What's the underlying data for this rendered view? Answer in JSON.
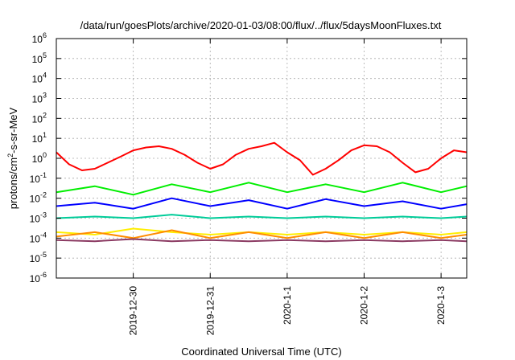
{
  "chart_data": {
    "type": "line",
    "title": "/data/run/goesPlots/archive/2020-01-03/08:00/flux/../flux/5daysMoonFluxes.txt",
    "xlabel": "Coordinated Universal Time (UTC)",
    "ylabel": {
      "part1": "protons/cm",
      "sup": "2",
      "part2": "-s-sr-MeV"
    },
    "xlim": [
      "2019-12-29T00:00",
      "2020-01-03T08:00"
    ],
    "ylim": [
      1e-06,
      1000000.0
    ],
    "yscale": "log",
    "grid": true,
    "x_ticks": [
      {
        "date": "2019-12-30",
        "label": "2019-12-30"
      },
      {
        "date": "2019-12-31",
        "label": "2019-12-31"
      },
      {
        "date": "2020-01-01",
        "label": "2020-1-1"
      },
      {
        "date": "2020-01-02",
        "label": "2020-1-2"
      },
      {
        "date": "2020-01-03",
        "label": "2020-1-3"
      }
    ],
    "y_ticks": [
      {
        "value": 1e-06,
        "base": "10",
        "exp": "-6"
      },
      {
        "value": 1e-05,
        "base": "10",
        "exp": "-5"
      },
      {
        "value": 0.0001,
        "base": "10",
        "exp": "-4"
      },
      {
        "value": 0.001,
        "base": "10",
        "exp": "-3"
      },
      {
        "value": 0.01,
        "base": "10",
        "exp": "-2"
      },
      {
        "value": 0.1,
        "base": "10",
        "exp": "-1"
      },
      {
        "value": 1.0,
        "base": "10",
        "exp": "0"
      },
      {
        "value": 10.0,
        "base": "10",
        "exp": "1"
      },
      {
        "value": 100.0,
        "base": "10",
        "exp": "2"
      },
      {
        "value": 1000.0,
        "base": "10",
        "exp": "3"
      },
      {
        "value": 10000.0,
        "base": "10",
        "exp": "4"
      },
      {
        "value": 100000.0,
        "base": "10",
        "exp": "5"
      },
      {
        "value": 1000000.0,
        "base": "10",
        "exp": "6"
      }
    ],
    "series": [
      {
        "color": "#ff0000",
        "values": [
          [
            "2019-12-29T00:00",
            2.0
          ],
          [
            "2019-12-29T04:00",
            0.5
          ],
          [
            "2019-12-29T08:00",
            0.25
          ],
          [
            "2019-12-29T12:00",
            0.3
          ],
          [
            "2019-12-29T16:00",
            0.6
          ],
          [
            "2019-12-29T20:00",
            1.2
          ],
          [
            "2019-12-30T00:00",
            2.5
          ],
          [
            "2019-12-30T04:00",
            3.5
          ],
          [
            "2019-12-30T08:00",
            4.0
          ],
          [
            "2019-12-30T12:00",
            3.0
          ],
          [
            "2019-12-30T16:00",
            1.5
          ],
          [
            "2019-12-30T20:00",
            0.6
          ],
          [
            "2019-12-31T00:00",
            0.3
          ],
          [
            "2019-12-31T04:00",
            0.5
          ],
          [
            "2019-12-31T08:00",
            1.5
          ],
          [
            "2019-12-31T12:00",
            3.0
          ],
          [
            "2019-12-31T16:00",
            4.0
          ],
          [
            "2019-12-31T20:00",
            6.0
          ],
          [
            "2020-01-01T00:00",
            2.0
          ],
          [
            "2020-01-01T04:00",
            0.8
          ],
          [
            "2020-01-01T08:00",
            0.15
          ],
          [
            "2020-01-01T12:00",
            0.3
          ],
          [
            "2020-01-01T16:00",
            0.8
          ],
          [
            "2020-01-01T20:00",
            2.5
          ],
          [
            "2020-01-02T00:00",
            4.5
          ],
          [
            "2020-01-02T04:00",
            4.0
          ],
          [
            "2020-01-02T08:00",
            2.0
          ],
          [
            "2020-01-02T12:00",
            0.6
          ],
          [
            "2020-01-02T16:00",
            0.2
          ],
          [
            "2020-01-02T20:00",
            0.3
          ],
          [
            "2020-01-03T00:00",
            1.0
          ],
          [
            "2020-01-03T04:00",
            2.5
          ],
          [
            "2020-01-03T08:00",
            2.0
          ]
        ]
      },
      {
        "color": "#00ee00",
        "values": [
          [
            "2019-12-29T00:00",
            0.02
          ],
          [
            "2019-12-29T12:00",
            0.04
          ],
          [
            "2019-12-30T00:00",
            0.015
          ],
          [
            "2019-12-30T12:00",
            0.05
          ],
          [
            "2019-12-31T00:00",
            0.02
          ],
          [
            "2019-12-31T12:00",
            0.06
          ],
          [
            "2020-01-01T00:00",
            0.02
          ],
          [
            "2020-01-01T12:00",
            0.05
          ],
          [
            "2020-01-02T00:00",
            0.02
          ],
          [
            "2020-01-02T12:00",
            0.06
          ],
          [
            "2020-01-03T00:00",
            0.02
          ],
          [
            "2020-01-03T08:00",
            0.04
          ]
        ]
      },
      {
        "color": "#0000ff",
        "values": [
          [
            "2019-12-29T00:00",
            0.004
          ],
          [
            "2019-12-29T12:00",
            0.006
          ],
          [
            "2019-12-30T00:00",
            0.003
          ],
          [
            "2019-12-30T12:00",
            0.01
          ],
          [
            "2019-12-31T00:00",
            0.004
          ],
          [
            "2019-12-31T12:00",
            0.008
          ],
          [
            "2020-01-01T00:00",
            0.003
          ],
          [
            "2020-01-01T12:00",
            0.009
          ],
          [
            "2020-01-02T00:00",
            0.004
          ],
          [
            "2020-01-02T12:00",
            0.007
          ],
          [
            "2020-01-03T00:00",
            0.003
          ],
          [
            "2020-01-03T08:00",
            0.005
          ]
        ]
      },
      {
        "color": "#00cc99",
        "values": [
          [
            "2019-12-29T00:00",
            0.001
          ],
          [
            "2019-12-29T12:00",
            0.0012
          ],
          [
            "2019-12-30T00:00",
            0.001
          ],
          [
            "2019-12-30T12:00",
            0.0015
          ],
          [
            "2019-12-31T00:00",
            0.001
          ],
          [
            "2019-12-31T12:00",
            0.0012
          ],
          [
            "2020-01-01T00:00",
            0.001
          ],
          [
            "2020-01-01T12:00",
            0.0012
          ],
          [
            "2020-01-02T00:00",
            0.001
          ],
          [
            "2020-01-02T12:00",
            0.0012
          ],
          [
            "2020-01-03T00:00",
            0.001
          ],
          [
            "2020-01-03T08:00",
            0.0012
          ]
        ]
      },
      {
        "color": "#ffee00",
        "values": [
          [
            "2019-12-29T00:00",
            0.0002
          ],
          [
            "2019-12-29T12:00",
            0.00015
          ],
          [
            "2019-12-30T00:00",
            0.0003
          ],
          [
            "2019-12-30T12:00",
            0.0002
          ],
          [
            "2019-12-31T00:00",
            0.00015
          ],
          [
            "2019-12-31T12:00",
            0.0002
          ],
          [
            "2020-01-01T00:00",
            0.00015
          ],
          [
            "2020-01-01T12:00",
            0.0002
          ],
          [
            "2020-01-02T00:00",
            0.00015
          ],
          [
            "2020-01-02T12:00",
            0.0002
          ],
          [
            "2020-01-03T00:00",
            0.00015
          ],
          [
            "2020-01-03T08:00",
            0.0002
          ]
        ]
      },
      {
        "color": "#ff8c00",
        "values": [
          [
            "2019-12-29T00:00",
            0.00012
          ],
          [
            "2019-12-29T12:00",
            0.0002
          ],
          [
            "2019-12-30T00:00",
            0.0001
          ],
          [
            "2019-12-30T12:00",
            0.00025
          ],
          [
            "2019-12-31T00:00",
            0.0001
          ],
          [
            "2019-12-31T12:00",
            0.0002
          ],
          [
            "2020-01-01T00:00",
            0.0001
          ],
          [
            "2020-01-01T12:00",
            0.0002
          ],
          [
            "2020-01-02T00:00",
            0.0001
          ],
          [
            "2020-01-02T12:00",
            0.0002
          ],
          [
            "2020-01-03T00:00",
            0.0001
          ],
          [
            "2020-01-03T08:00",
            0.00015
          ]
        ]
      },
      {
        "color": "#8b3a62",
        "values": [
          [
            "2019-12-29T00:00",
            8e-05
          ],
          [
            "2019-12-29T12:00",
            7e-05
          ],
          [
            "2019-12-30T00:00",
            9e-05
          ],
          [
            "2019-12-30T12:00",
            7e-05
          ],
          [
            "2019-12-31T00:00",
            8e-05
          ],
          [
            "2019-12-31T12:00",
            7e-05
          ],
          [
            "2020-01-01T00:00",
            8e-05
          ],
          [
            "2020-01-01T12:00",
            7e-05
          ],
          [
            "2020-01-02T00:00",
            8e-05
          ],
          [
            "2020-01-02T12:00",
            7e-05
          ],
          [
            "2020-01-03T00:00",
            8e-05
          ],
          [
            "2020-01-03T08:00",
            7e-05
          ]
        ]
      }
    ]
  }
}
